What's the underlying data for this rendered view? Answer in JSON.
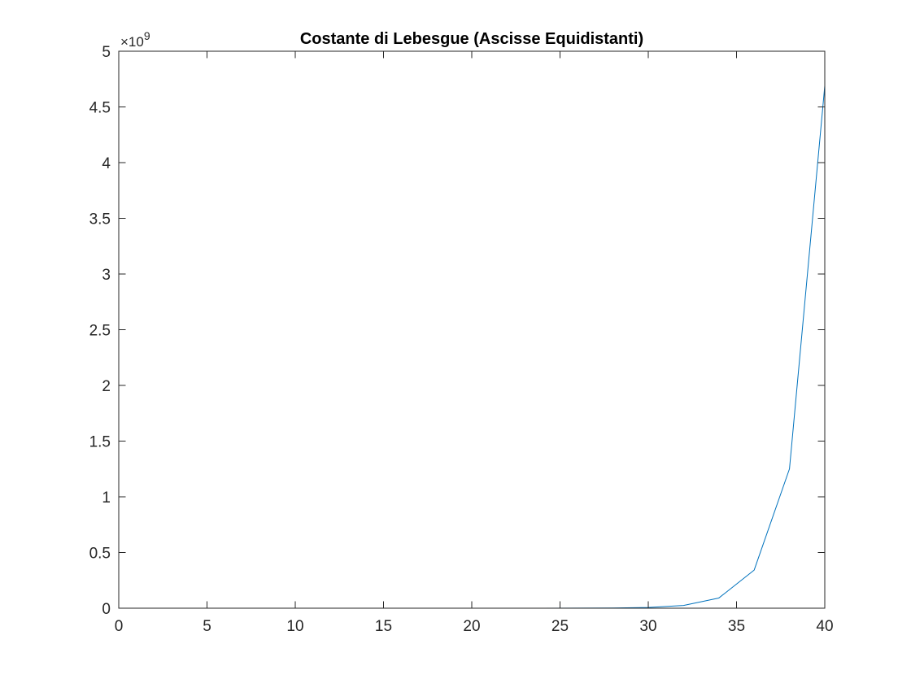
{
  "chart_data": {
    "type": "line",
    "title": "Costante di Lebesgue (Ascisse Equidistanti)",
    "xlabel": "",
    "ylabel": "",
    "xlim": [
      0,
      40
    ],
    "ylim": [
      0,
      5000000000
    ],
    "x_ticks": [
      0,
      5,
      10,
      15,
      20,
      25,
      30,
      35,
      40
    ],
    "x_tick_labels": [
      "0",
      "5",
      "10",
      "15",
      "20",
      "25",
      "30",
      "35",
      "40"
    ],
    "y_ticks": [
      0,
      500000000,
      1000000000,
      1500000000,
      2000000000,
      2500000000,
      3000000000,
      3500000000,
      4000000000,
      4500000000,
      5000000000
    ],
    "y_tick_labels": [
      "0",
      "0.5",
      "1",
      "1.5",
      "2",
      "2.5",
      "3",
      "3.5",
      "4",
      "4.5",
      "5"
    ],
    "y_exponent": {
      "base": "×10",
      "power": "9"
    },
    "grid": false,
    "box": true,
    "series": [
      {
        "color": "#0072BD",
        "x": [
          2,
          4,
          6,
          8,
          10,
          12,
          14,
          16,
          18,
          20,
          22,
          24,
          26,
          28,
          30,
          32,
          34,
          36,
          38,
          40
        ],
        "y": [
          1.25,
          2.21,
          4.55,
          10.9,
          29.9,
          89.3,
          283,
          935,
          3170,
          10990,
          38720,
          138200,
          498300,
          1815000,
          6665000,
          24640000,
          91600000,
          342300000,
          1251000000,
          4690000000
        ]
      }
    ]
  }
}
